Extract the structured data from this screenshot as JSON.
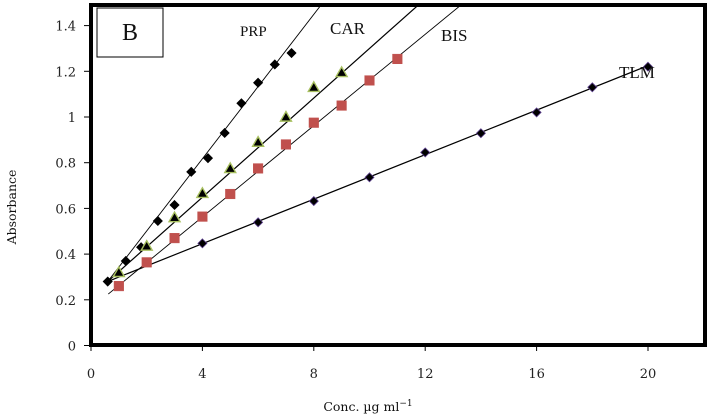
{
  "chart_data": {
    "type": "scatter",
    "title": "",
    "panel_label": "B",
    "xlabel": "Conc. µg ml",
    "xlabel_superscript": "−1",
    "ylabel": "Absorbance",
    "xlim": [
      0,
      22
    ],
    "ylim": [
      0,
      1.5
    ],
    "xticks": [
      "0",
      "4",
      "8",
      "12",
      "16",
      "20"
    ],
    "xtick_values": [
      0,
      4,
      8,
      12,
      16,
      20
    ],
    "yticks": [
      "0",
      "0.2",
      "0.4",
      "0.6",
      "0.8",
      "1",
      "1.2",
      "1.4"
    ],
    "ytick_values": [
      0,
      0.2,
      0.4,
      0.6,
      0.8,
      1.0,
      1.2,
      1.4
    ],
    "grid": false,
    "legend": "none (inline series labels)",
    "series": [
      {
        "name": "PRP",
        "label": "PRP",
        "marker": "diamond",
        "color": "#000000",
        "x": [
          0.6,
          1.25,
          1.8,
          2.4,
          3.0,
          3.6,
          4.2,
          4.8,
          5.4,
          6.0,
          6.6,
          7.2
        ],
        "y": [
          0.28,
          0.37,
          0.43,
          0.545,
          0.615,
          0.76,
          0.82,
          0.93,
          1.06,
          1.15,
          1.23,
          1.28
        ],
        "fit": {
          "x_start": 0.6,
          "y_start": 0.28,
          "slope": 0.158
        }
      },
      {
        "name": "CAR",
        "label": "CAR",
        "marker": "triangle",
        "color": "#000000",
        "edge_color": "#a8c060",
        "x": [
          1,
          2,
          3,
          4,
          5,
          6,
          7,
          8,
          9
        ],
        "y": [
          0.32,
          0.435,
          0.56,
          0.666,
          0.775,
          0.89,
          1.0,
          1.13,
          1.195
        ],
        "fit": {
          "x_start": 0.6,
          "y_start": 0.28,
          "slope": 0.1085
        }
      },
      {
        "name": "BIS",
        "label": "BIS",
        "marker": "square",
        "color": "#c0504d",
        "x": [
          1,
          2,
          3,
          4,
          5,
          6,
          7,
          8,
          9,
          10,
          11
        ],
        "y": [
          0.26,
          0.364,
          0.47,
          0.564,
          0.663,
          0.775,
          0.88,
          0.975,
          1.05,
          1.16,
          1.254
        ],
        "fit": {
          "x_start": 0.62,
          "y_start": 0.225,
          "slope": 0.0999
        }
      },
      {
        "name": "TLM",
        "label": "TLM",
        "marker": "diamond",
        "color": "#000000",
        "edge_color": "#5b3f8c",
        "x": [
          4,
          6,
          8,
          10,
          12,
          14,
          16,
          18,
          20
        ],
        "y": [
          0.447,
          0.539,
          0.632,
          0.736,
          0.845,
          0.929,
          1.02,
          1.13,
          1.22
        ],
        "fit": {
          "x_start": 0.6,
          "y_start": 0.28,
          "slope": 0.0487
        }
      }
    ]
  }
}
